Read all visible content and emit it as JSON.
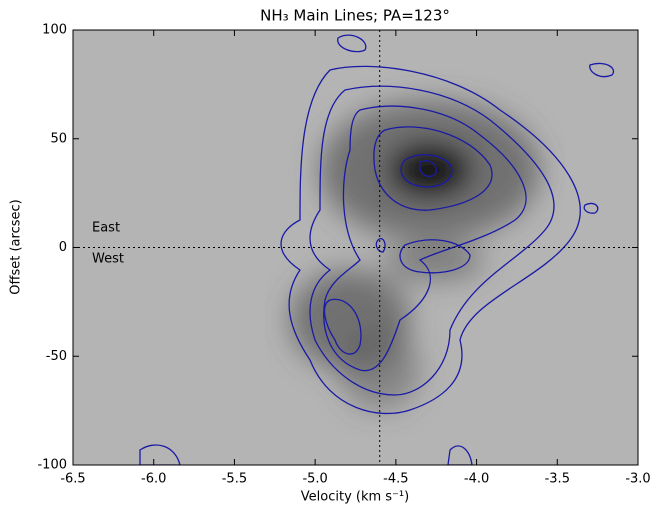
{
  "chart_data": {
    "type": "contour",
    "title": "NH₃ Main Lines; PA=123°",
    "xlabel": "Velocity (km s⁻¹)",
    "ylabel": "Offset (arcsec)",
    "annotations": [
      "East",
      "West"
    ],
    "xlim": [
      -6.5,
      -3.0
    ],
    "xticks": [
      -6.5,
      {
        "value": -6.0,
        "label": "-6.0"
      },
      -5.5,
      {
        "value": -5.0,
        "label": "-5.0"
      },
      -4.5,
      {
        "value": -4.0,
        "label": "-4.0"
      },
      -3.5,
      {
        "value": -3.0,
        "label": "-3.0"
      }
    ],
    "ylim": [
      -100,
      100
    ],
    "yticks": [
      -100,
      -50,
      0,
      50,
      100
    ],
    "reference_lines": {
      "x": -4.6,
      "y": 0
    },
    "contour_color": "#1a1aa6"
  }
}
